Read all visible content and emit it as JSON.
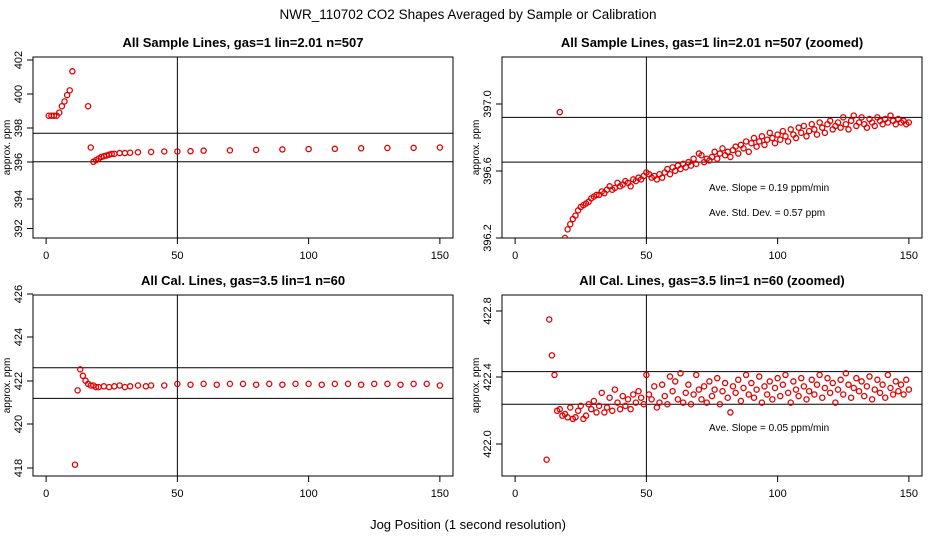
{
  "page": {
    "title": "NWR_110702  CO2 Shapes Averaged by Sample or Calibration",
    "xlabel": "Jog Position (1 second resolution)"
  },
  "colors": {
    "points": "#e00000",
    "axis": "#000000"
  },
  "chart_data": [
    {
      "type": "scatter",
      "title": "All Sample Lines, gas=1 lin=2.01 n=507",
      "ylabel": "approx. ppm",
      "xlim": [
        -5,
        155
      ],
      "ylim": [
        391.2,
        402.6
      ],
      "xticks": [
        "0",
        "50",
        "100",
        "150"
      ],
      "yticks": [
        "392",
        "394",
        "396",
        "398",
        "400",
        "402"
      ],
      "ref_v": [
        50
      ],
      "ref_h": [
        396.0,
        397.8
      ],
      "annotations": [],
      "series": [
        {
          "name": "sample-average",
          "x": [
            1,
            2,
            3,
            4,
            5,
            6,
            7,
            8,
            9,
            10,
            16,
            17,
            18,
            19,
            20,
            21,
            22,
            23,
            24,
            25,
            26,
            28,
            30,
            32,
            35,
            40,
            45,
            50,
            55,
            60,
            70,
            80,
            90,
            100,
            110,
            120,
            130,
            140,
            150
          ],
          "y": [
            398.9,
            398.9,
            398.9,
            398.9,
            399.1,
            399.5,
            399.8,
            400.2,
            400.5,
            401.7,
            399.5,
            396.9,
            396.0,
            396.1,
            396.2,
            396.3,
            396.35,
            396.4,
            396.45,
            396.5,
            396.5,
            396.55,
            396.55,
            396.57,
            396.6,
            396.62,
            396.65,
            396.65,
            396.67,
            396.7,
            396.72,
            396.75,
            396.78,
            396.8,
            396.82,
            396.85,
            396.87,
            396.88,
            396.9
          ]
        }
      ]
    },
    {
      "type": "scatter",
      "title": "All Sample Lines, gas=1 lin=2.01 n=507 (zoomed)",
      "ylabel": "approx. ppm",
      "xlim": [
        -5,
        155
      ],
      "ylim": [
        396.2,
        397.25
      ],
      "xticks": [
        "0",
        "50",
        "100",
        "150"
      ],
      "yticks": [
        "396.2",
        "396.6",
        "397.0"
      ],
      "ref_v": [
        50
      ],
      "ref_h": [
        396.64,
        396.9
      ],
      "annotations": [
        "Ave. Slope =  0.19  ppm/min",
        "Ave. Std. Dev. =  0.57  ppm"
      ],
      "series": [
        {
          "name": "sample-average-zoomed",
          "x": [
            17,
            19,
            20,
            21,
            22,
            23,
            24,
            25,
            26,
            27,
            28,
            29,
            30,
            31,
            32,
            33,
            34,
            35,
            36,
            37,
            38,
            39,
            40,
            41,
            42,
            43,
            44,
            45,
            46,
            47,
            48,
            49,
            50,
            51,
            52,
            53,
            54,
            55,
            56,
            57,
            58,
            59,
            60,
            61,
            62,
            63,
            64,
            65,
            66,
            67,
            68,
            69,
            70,
            71,
            72,
            73,
            74,
            75,
            76,
            77,
            78,
            79,
            80,
            81,
            82,
            83,
            84,
            85,
            86,
            87,
            88,
            89,
            90,
            91,
            92,
            93,
            94,
            95,
            96,
            97,
            98,
            99,
            100,
            101,
            102,
            103,
            104,
            105,
            106,
            107,
            108,
            109,
            110,
            111,
            112,
            113,
            114,
            115,
            116,
            117,
            118,
            119,
            120,
            121,
            122,
            123,
            124,
            125,
            126,
            127,
            128,
            129,
            130,
            131,
            132,
            133,
            134,
            135,
            136,
            137,
            138,
            139,
            140,
            141,
            142,
            143,
            144,
            145,
            146,
            147,
            148,
            149,
            150
          ],
          "y": [
            396.93,
            396.2,
            396.25,
            396.28,
            396.31,
            396.33,
            396.36,
            396.38,
            396.39,
            396.4,
            396.41,
            396.43,
            396.44,
            396.45,
            396.45,
            396.47,
            396.46,
            396.48,
            396.5,
            396.48,
            396.49,
            396.52,
            396.5,
            396.51,
            396.53,
            396.52,
            396.5,
            396.54,
            396.53,
            396.55,
            396.54,
            396.56,
            396.58,
            396.57,
            396.55,
            396.56,
            396.54,
            396.57,
            396.55,
            396.58,
            396.6,
            396.57,
            396.61,
            396.59,
            396.62,
            396.6,
            396.63,
            396.61,
            396.64,
            396.62,
            396.66,
            396.63,
            396.69,
            396.68,
            396.64,
            396.66,
            396.65,
            396.67,
            396.7,
            396.66,
            396.69,
            396.72,
            396.68,
            396.7,
            396.67,
            396.71,
            396.73,
            396.69,
            396.74,
            396.72,
            396.76,
            396.7,
            396.75,
            396.78,
            396.73,
            396.76,
            396.79,
            396.74,
            396.77,
            396.81,
            396.78,
            396.75,
            396.8,
            396.77,
            396.82,
            396.79,
            396.76,
            396.83,
            396.8,
            396.78,
            396.84,
            396.81,
            396.85,
            396.79,
            396.82,
            396.86,
            396.83,
            396.8,
            396.87,
            396.84,
            396.81,
            396.86,
            396.88,
            396.83,
            396.85,
            396.87,
            396.84,
            396.9,
            396.86,
            396.83,
            396.88,
            396.91,
            396.85,
            396.87,
            396.9,
            396.86,
            396.84,
            396.89,
            396.87,
            396.85,
            396.9,
            396.88,
            396.86,
            396.89,
            396.87,
            396.91,
            396.88,
            396.86,
            396.89,
            396.87,
            396.88,
            396.86,
            396.87
          ]
        }
      ]
    },
    {
      "type": "scatter",
      "title": "All Cal. Lines, gas=3.5 lin=1 n=60",
      "ylabel": "approx. ppm",
      "xlim": [
        -5,
        155
      ],
      "ylim": [
        416.6,
        427.8
      ],
      "xticks": [
        "0",
        "50",
        "100",
        "150"
      ],
      "yticks": [
        "418",
        "420",
        "422",
        "424",
        "426"
      ],
      "ref_v": [
        50
      ],
      "ref_h": [
        421.4,
        423.3
      ],
      "annotations": [],
      "series": [
        {
          "name": "cal-average",
          "x": [
            11,
            12,
            13,
            14,
            15,
            16,
            17,
            18,
            19,
            20,
            22,
            24,
            26,
            28,
            30,
            32,
            35,
            38,
            40,
            45,
            50,
            55,
            60,
            65,
            70,
            75,
            80,
            85,
            90,
            95,
            100,
            105,
            110,
            115,
            120,
            125,
            130,
            135,
            140,
            145,
            150
          ],
          "y": [
            417.3,
            421.9,
            423.2,
            422.8,
            422.5,
            422.3,
            422.2,
            422.2,
            422.1,
            422.1,
            422.15,
            422.1,
            422.15,
            422.2,
            422.1,
            422.15,
            422.2,
            422.15,
            422.2,
            422.2,
            422.3,
            422.25,
            422.3,
            422.25,
            422.3,
            422.3,
            422.25,
            422.3,
            422.25,
            422.3,
            422.3,
            422.25,
            422.3,
            422.3,
            422.25,
            422.3,
            422.3,
            422.25,
            422.3,
            422.3,
            422.2
          ]
        }
      ]
    },
    {
      "type": "scatter",
      "title": "All Cal. Lines, gas=3.5 lin=1 n=60 (zoomed)",
      "ylabel": "approx. ppm",
      "xlim": [
        -5,
        155
      ],
      "ylim": [
        421.8,
        422.91
      ],
      "xticks": [
        "0",
        "50",
        "100",
        "150"
      ],
      "yticks": [
        "422.0",
        "422.4",
        "422.8"
      ],
      "ref_v": [
        50
      ],
      "ref_h": [
        422.24,
        422.44
      ],
      "annotations": [
        "Ave. Slope =  0.05  ppm/min"
      ],
      "series": [
        {
          "name": "cal-average-zoomed",
          "x": [
            12,
            13,
            14,
            15,
            16,
            17,
            18,
            19,
            20,
            21,
            22,
            23,
            24,
            25,
            26,
            27,
            28,
            29,
            30,
            31,
            32,
            33,
            34,
            35,
            36,
            37,
            38,
            39,
            40,
            41,
            42,
            43,
            44,
            45,
            46,
            47,
            48,
            49,
            50,
            51,
            52,
            53,
            54,
            55,
            56,
            57,
            58,
            59,
            60,
            61,
            62,
            63,
            64,
            65,
            66,
            67,
            68,
            69,
            70,
            71,
            72,
            73,
            74,
            75,
            76,
            77,
            78,
            79,
            80,
            81,
            82,
            83,
            84,
            85,
            86,
            87,
            88,
            89,
            90,
            91,
            92,
            93,
            94,
            95,
            96,
            97,
            98,
            99,
            100,
            101,
            102,
            103,
            104,
            105,
            106,
            107,
            108,
            109,
            110,
            111,
            112,
            113,
            114,
            115,
            116,
            117,
            118,
            119,
            120,
            121,
            122,
            123,
            124,
            125,
            126,
            127,
            128,
            129,
            130,
            131,
            132,
            133,
            134,
            135,
            136,
            137,
            138,
            139,
            140,
            141,
            142,
            143,
            144,
            145,
            146,
            147,
            148,
            149,
            150
          ],
          "y": [
            421.9,
            422.76,
            422.54,
            422.42,
            422.2,
            422.21,
            422.17,
            422.18,
            422.16,
            422.22,
            422.15,
            422.16,
            422.2,
            422.23,
            422.15,
            422.17,
            422.24,
            422.21,
            422.26,
            422.19,
            422.23,
            422.31,
            422.19,
            422.22,
            422.28,
            422.2,
            422.33,
            422.25,
            422.21,
            422.29,
            422.23,
            422.27,
            422.21,
            422.3,
            422.25,
            422.32,
            422.28,
            422.24,
            422.42,
            422.3,
            422.27,
            422.35,
            422.22,
            422.25,
            422.36,
            422.29,
            422.24,
            422.41,
            422.32,
            422.38,
            422.27,
            422.43,
            422.25,
            422.31,
            422.36,
            422.24,
            422.3,
            422.42,
            422.33,
            422.27,
            422.35,
            422.25,
            422.38,
            422.29,
            422.33,
            422.4,
            422.24,
            422.32,
            422.37,
            422.28,
            422.19,
            422.35,
            422.31,
            422.39,
            422.26,
            422.34,
            422.42,
            422.3,
            422.37,
            422.28,
            422.33,
            422.41,
            422.25,
            422.35,
            422.3,
            422.38,
            422.27,
            422.34,
            422.4,
            422.29,
            422.36,
            422.42,
            422.31,
            422.25,
            422.38,
            422.33,
            422.29,
            422.4,
            422.35,
            422.27,
            422.32,
            422.39,
            422.3,
            422.36,
            422.42,
            422.28,
            422.34,
            422.4,
            422.31,
            422.37,
            422.25,
            422.33,
            422.39,
            422.3,
            422.43,
            422.36,
            422.28,
            422.34,
            422.4,
            422.32,
            422.38,
            422.29,
            422.35,
            422.41,
            422.27,
            422.33,
            422.39,
            422.31,
            422.36,
            422.28,
            422.42,
            422.34,
            422.3,
            422.38,
            422.32,
            422.36,
            422.3,
            422.39,
            422.33
          ]
        }
      ]
    }
  ]
}
